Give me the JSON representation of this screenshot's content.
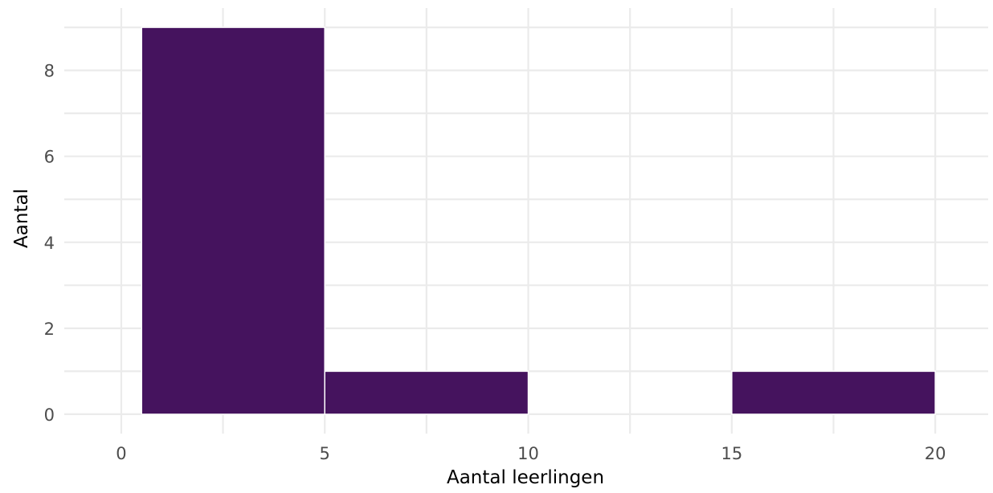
{
  "chart_data": {
    "type": "bar",
    "subtype": "histogram",
    "title": "",
    "xlabel": "Aantal leerlingen",
    "ylabel": "Aantal",
    "bins": [
      {
        "x0": 0.5,
        "x1": 5,
        "count": 9
      },
      {
        "x0": 5,
        "x1": 10,
        "count": 1
      },
      {
        "x0": 10,
        "x1": 15,
        "count": 0
      },
      {
        "x0": 15,
        "x1": 20,
        "count": 1
      }
    ],
    "xlim": [
      -1.4,
      21.3
    ],
    "ylim": [
      -0.45,
      9.45
    ],
    "x_ticks": [
      0,
      5,
      10,
      15,
      20
    ],
    "y_ticks": [
      0,
      2,
      4,
      6,
      8
    ],
    "x_minor_grid": [
      2.5,
      7.5,
      12.5,
      17.5
    ],
    "y_minor_grid": [
      1,
      3,
      5,
      7,
      9
    ],
    "grid": true,
    "legend": "none",
    "colors": {
      "bar": "#45135e",
      "grid": "#ebebeb",
      "tick_text": "#4d4d4d",
      "title_text": "#000000"
    }
  }
}
